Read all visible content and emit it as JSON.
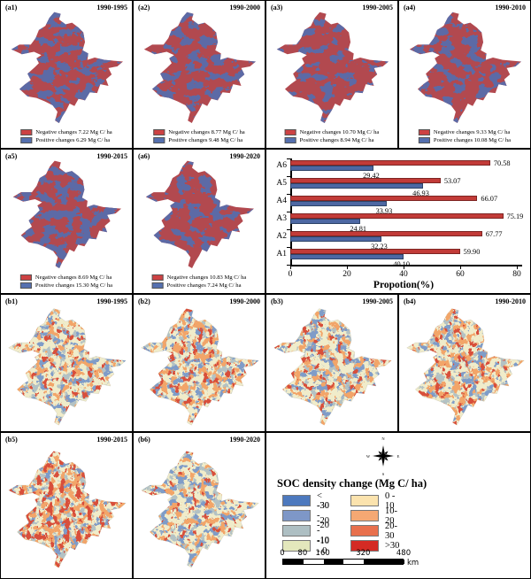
{
  "colors": {
    "a_negative": "#b2494f",
    "a_positive": "#5c6aa6",
    "chip_negative": "#cd4243",
    "chip_positive": "#5570b0",
    "b_base": "#f0ecca",
    "b_pale": "#fbe7b3",
    "b_grayblue": "#b3c2c4",
    "b_blue": "#7f9cc8",
    "b_orange": "#f2a569",
    "b_red": "#d8503a",
    "bar_negative": "#c23b38",
    "bar_positive": "#4d68a3"
  },
  "a_maps": [
    {
      "id": "(a1)",
      "period": "1990-1995",
      "negative": "Negative changes 7.22 Mg C/ ha",
      "positive": "Positive changes 6.29 Mg C/ ha"
    },
    {
      "id": "(a2)",
      "period": "1990-2000",
      "negative": "Negative changes 8.77 Mg C/ ha",
      "positive": "Positive changes 9.48 Mg C/ ha"
    },
    {
      "id": "(a3)",
      "period": "1990-2005",
      "negative": "Negative changes 10.70 Mg C/ ha",
      "positive": "Positive changes 8.94 Mg C/ ha"
    },
    {
      "id": "(a4)",
      "period": "1990-2010",
      "negative": "Negative changes 9.33 Mg C/ ha",
      "positive": "Positive changes 10.08 Mg C/ ha"
    },
    {
      "id": "(a5)",
      "period": "1990-2015",
      "negative": "Negative changes 8.69 Mg C/ ha",
      "positive": "Positive changes 15.30 Mg C/ ha"
    },
    {
      "id": "(a6)",
      "period": "1990-2020",
      "negative": "Negative changes 10.83 Mg C/ ha",
      "positive": "Positive changes 7.24 Mg C/ ha"
    }
  ],
  "b_maps": [
    {
      "id": "(b1)",
      "period": "1990-1995"
    },
    {
      "id": "(b2)",
      "period": "1990-2000"
    },
    {
      "id": "(b3)",
      "period": "1990-2005"
    },
    {
      "id": "(b4)",
      "period": "1990-2010"
    },
    {
      "id": "(b5)",
      "period": "1990-2015"
    },
    {
      "id": "(b6)",
      "period": "1990-2020"
    }
  ],
  "chart_data": {
    "type": "bar",
    "orientation": "horizontal",
    "categories": [
      "A1",
      "A2",
      "A3",
      "A4",
      "A5",
      "A6"
    ],
    "series": [
      {
        "name": "Negative changes",
        "color": "#c23b38",
        "values": [
          59.9,
          67.77,
          75.19,
          66.07,
          53.07,
          70.58
        ],
        "labels": [
          "59.90",
          "67.77",
          "75.19",
          "66.07",
          "53.07",
          "70.58"
        ]
      },
      {
        "name": "Positive changes",
        "color": "#4d68a3",
        "values": [
          40.1,
          32.23,
          24.81,
          33.93,
          46.93,
          29.42
        ],
        "labels": [
          "40.10",
          "32.23",
          "24.81",
          "33.93",
          "46.93",
          "29.42"
        ]
      }
    ],
    "xlabel": "Propotion(%)",
    "xlim": [
      0,
      80
    ],
    "xticks": [
      "0",
      "20",
      "40",
      "60",
      "80"
    ],
    "grid": false,
    "legend_position": "none"
  },
  "soc_legend": {
    "title": "SOC density change (Mg C/ ha)",
    "items": [
      {
        "label": "< -30",
        "color": "#4d79be"
      },
      {
        "label": "-30 - -20",
        "color": "#7e97c7"
      },
      {
        "label": "-20 - -10",
        "color": "#aebfc3"
      },
      {
        "label": "-10 - 0",
        "color": "#e3e7bc"
      },
      {
        "label": "0 - 10",
        "color": "#fbe3ae"
      },
      {
        "label": "10-20",
        "color": "#f5a873"
      },
      {
        "label": "20-30",
        "color": "#e8704d"
      },
      {
        "label": ">30",
        "color": "#d42b24"
      }
    ]
  },
  "compass": {
    "n": "N",
    "e": "E",
    "s": "S",
    "w": "W"
  },
  "scale_bar": {
    "ticks": [
      "0",
      "80",
      "160",
      "320",
      "480"
    ],
    "unit": "km"
  }
}
